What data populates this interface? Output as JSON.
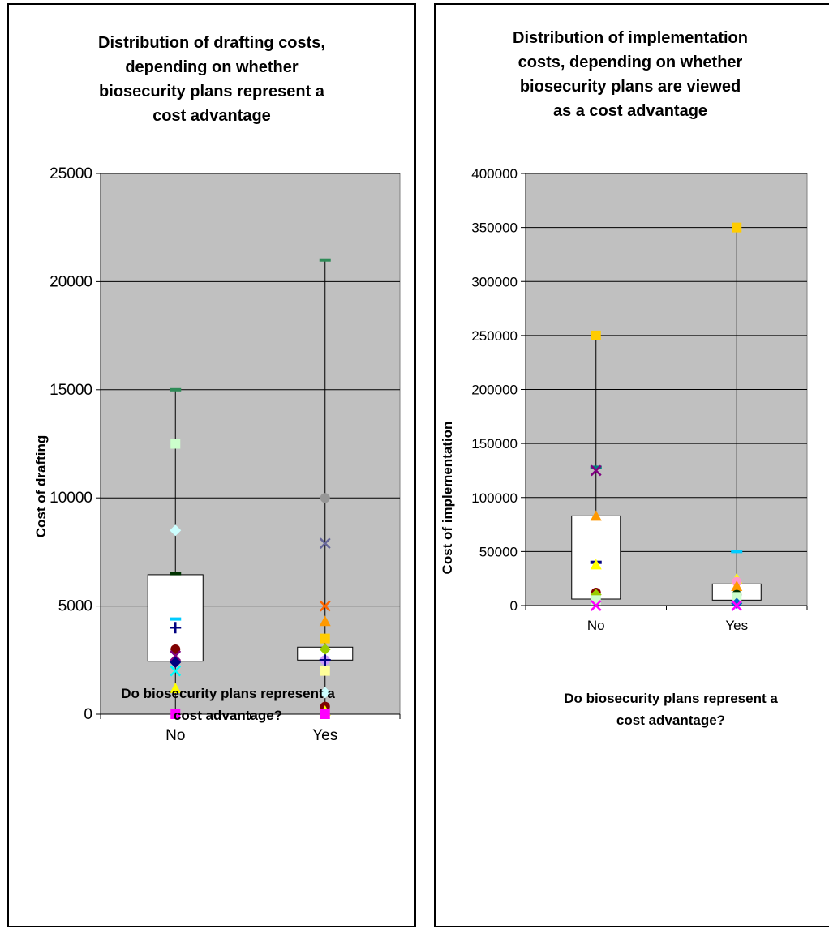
{
  "chart_data": [
    {
      "type": "box",
      "title": "Distribution of drafting costs, depending on whether biosecurity plans represent a cost advantage",
      "title_lines": [
        "Distribution of drafting costs,",
        "depending on whether",
        "biosecurity plans represent a",
        "cost advantage"
      ],
      "xlabel": "Do biosecurity plans represent a cost advantage?",
      "xlabel_lines": [
        "Do biosecurity plans represent a",
        "cost advantage?"
      ],
      "ylabel": "Cost of drafting",
      "categories": [
        "No",
        "Yes"
      ],
      "ylim": [
        0,
        25000
      ],
      "yticks": [
        0,
        5000,
        10000,
        15000,
        20000,
        25000
      ],
      "ytick_labels": [
        "0",
        "5000",
        "10000",
        "15000",
        "20000",
        "25000"
      ],
      "grid": true,
      "plot_background": "#c0c0c0",
      "boxes": [
        {
          "category": "No",
          "min": 0,
          "q1": 2450,
          "q3": 6450,
          "max": 15000
        },
        {
          "category": "Yes",
          "min": 0,
          "q1": 2500,
          "q3": 3100,
          "max": 21000
        }
      ],
      "points": [
        {
          "category": "No",
          "value": 15000,
          "marker": "dash",
          "color": "#2e8b57"
        },
        {
          "category": "No",
          "value": 12500,
          "marker": "square",
          "color": "#ccffcc"
        },
        {
          "category": "No",
          "value": 8500,
          "marker": "diamond",
          "color": "#ccffff"
        },
        {
          "category": "No",
          "value": 6500,
          "marker": "dash",
          "color": "#003300"
        },
        {
          "category": "No",
          "value": 4400,
          "marker": "dash",
          "color": "#00ccff"
        },
        {
          "category": "No",
          "value": 4000,
          "marker": "plus",
          "color": "#000080"
        },
        {
          "category": "No",
          "value": 3000,
          "marker": "circle",
          "color": "#800000"
        },
        {
          "category": "No",
          "value": 2700,
          "marker": "x",
          "color": "#800080"
        },
        {
          "category": "No",
          "value": 2400,
          "marker": "diamond",
          "color": "#000080"
        },
        {
          "category": "No",
          "value": 2000,
          "marker": "x",
          "color": "#00ffff"
        },
        {
          "category": "No",
          "value": 1200,
          "marker": "triangle",
          "color": "#ffff00"
        },
        {
          "category": "No",
          "value": 0,
          "marker": "square",
          "color": "#ff00ff"
        },
        {
          "category": "Yes",
          "value": 21000,
          "marker": "dash",
          "color": "#2e8b57"
        },
        {
          "category": "Yes",
          "value": 10000,
          "marker": "circle",
          "color": "#969696"
        },
        {
          "category": "Yes",
          "value": 7900,
          "marker": "x",
          "color": "#666699"
        },
        {
          "category": "Yes",
          "value": 5000,
          "marker": "x",
          "color": "#ff6600"
        },
        {
          "category": "Yes",
          "value": 4300,
          "marker": "triangle",
          "color": "#ff9900"
        },
        {
          "category": "Yes",
          "value": 3500,
          "marker": "square",
          "color": "#ffcc00"
        },
        {
          "category": "Yes",
          "value": 3000,
          "marker": "diamond",
          "color": "#99cc00"
        },
        {
          "category": "Yes",
          "value": 2500,
          "marker": "circle",
          "color": "#cc99ff"
        },
        {
          "category": "Yes",
          "value": 2500,
          "marker": "plus",
          "color": "#000080"
        },
        {
          "category": "Yes",
          "value": 2000,
          "marker": "square",
          "color": "#ffff99"
        },
        {
          "category": "Yes",
          "value": 1000,
          "marker": "diamond",
          "color": "#ccffff"
        },
        {
          "category": "Yes",
          "value": 350,
          "marker": "circle",
          "color": "#800000"
        },
        {
          "category": "Yes",
          "value": 150,
          "marker": "triangle",
          "color": "#ffff00"
        },
        {
          "category": "Yes",
          "value": 0,
          "marker": "square",
          "color": "#ff00ff"
        }
      ]
    },
    {
      "type": "box",
      "title": "Distribution of implementation costs, depending on whether biosecurity plans are viewed as a cost advantage",
      "title_lines": [
        "Distribution of implementation",
        "costs, depending on whether",
        "biosecurity plans are viewed",
        "as a cost advantage"
      ],
      "xlabel": "Do biosecurity plans represent a cost advantage?",
      "xlabel_lines": [
        "Do biosecurity plans represent a",
        "cost advantage?"
      ],
      "ylabel": "Cost of implementation",
      "categories": [
        "No",
        "Yes"
      ],
      "ylim": [
        0,
        400000
      ],
      "yticks": [
        0,
        50000,
        100000,
        150000,
        200000,
        250000,
        300000,
        350000,
        400000
      ],
      "ytick_labels": [
        "0",
        "50000",
        "100000",
        "150000",
        "200000",
        "250000",
        "300000",
        "350000",
        "400000"
      ],
      "grid": true,
      "plot_background": "#c0c0c0",
      "boxes": [
        {
          "category": "No",
          "min": 0,
          "q1": 6000,
          "q3": 83000,
          "max": 250000
        },
        {
          "category": "Yes",
          "min": 0,
          "q1": 5000,
          "q3": 20000,
          "max": 350000
        }
      ],
      "points": [
        {
          "category": "No",
          "value": 250000,
          "marker": "square",
          "color": "#ffcc00"
        },
        {
          "category": "No",
          "value": 128000,
          "marker": "dash",
          "color": "#008080"
        },
        {
          "category": "No",
          "value": 125000,
          "marker": "x",
          "color": "#800080"
        },
        {
          "category": "No",
          "value": 83000,
          "marker": "triangle",
          "color": "#ff9900"
        },
        {
          "category": "No",
          "value": 40000,
          "marker": "dash",
          "color": "#000080"
        },
        {
          "category": "No",
          "value": 38000,
          "marker": "triangle",
          "color": "#ffff00"
        },
        {
          "category": "No",
          "value": 12000,
          "marker": "circle",
          "color": "#800000"
        },
        {
          "category": "No",
          "value": 10000,
          "marker": "diamond",
          "color": "#99cc00"
        },
        {
          "category": "No",
          "value": 5000,
          "marker": "square",
          "color": "#ccffcc"
        },
        {
          "category": "No",
          "value": 0,
          "marker": "x",
          "color": "#ff00ff"
        },
        {
          "category": "Yes",
          "value": 350000,
          "marker": "square",
          "color": "#ffcc00"
        },
        {
          "category": "Yes",
          "value": 50000,
          "marker": "dash",
          "color": "#00ccff"
        },
        {
          "category": "Yes",
          "value": 25000,
          "marker": "triangle",
          "color": "#ffff00"
        },
        {
          "category": "Yes",
          "value": 22000,
          "marker": "circle",
          "color": "#ff99cc"
        },
        {
          "category": "Yes",
          "value": 18000,
          "marker": "triangle",
          "color": "#ff9900"
        },
        {
          "category": "Yes",
          "value": 10000,
          "marker": "circle",
          "color": "#003300"
        },
        {
          "category": "Yes",
          "value": 8000,
          "marker": "square",
          "color": "#ccffcc"
        },
        {
          "category": "Yes",
          "value": 2000,
          "marker": "diamond",
          "color": "#0066cc"
        },
        {
          "category": "Yes",
          "value": 0,
          "marker": "x",
          "color": "#ff00ff"
        }
      ]
    }
  ]
}
